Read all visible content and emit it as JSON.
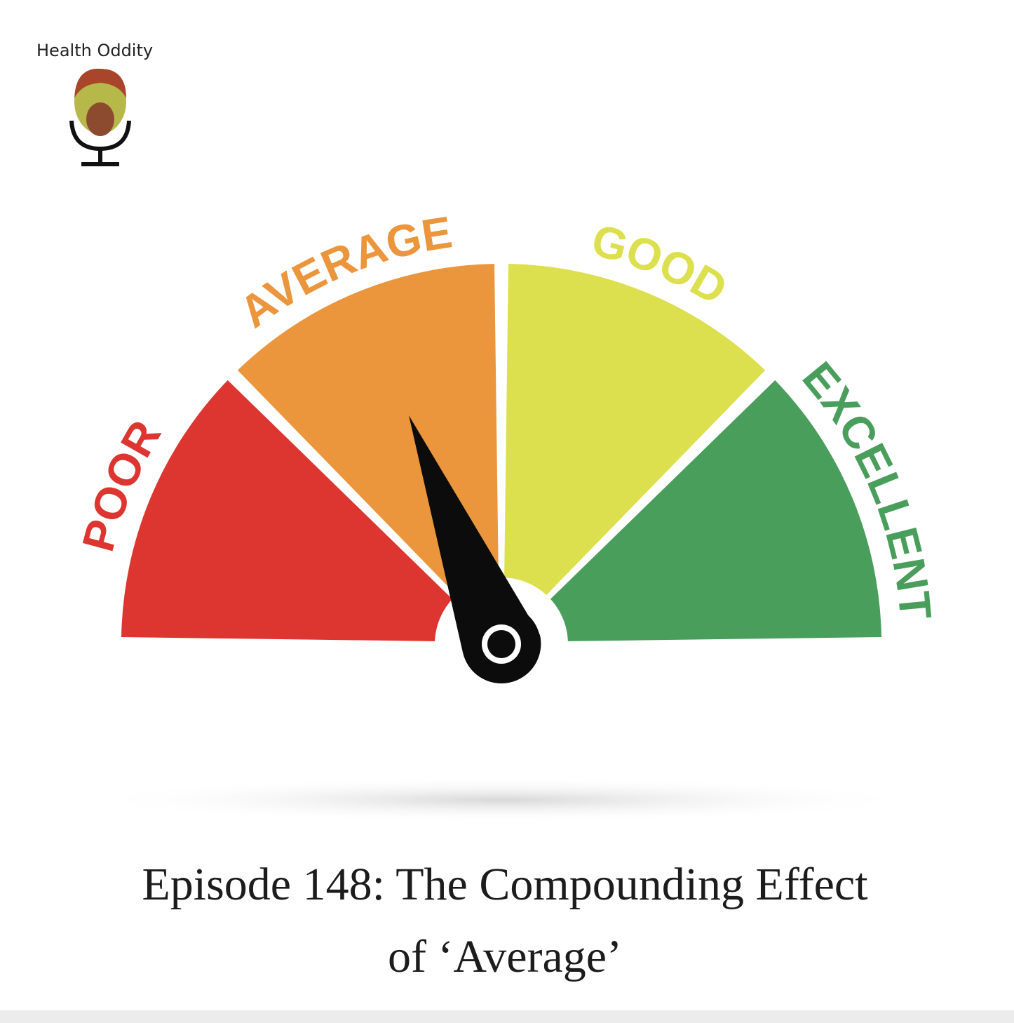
{
  "brand": "Health Oddity",
  "gauge": {
    "labels": [
      "POOR",
      "AVERAGE",
      "GOOD",
      "EXCELLENT"
    ]
  },
  "title": {
    "lines": [
      "Episode 148: The Compounding Effect",
      "of ‘Average’"
    ]
  }
}
